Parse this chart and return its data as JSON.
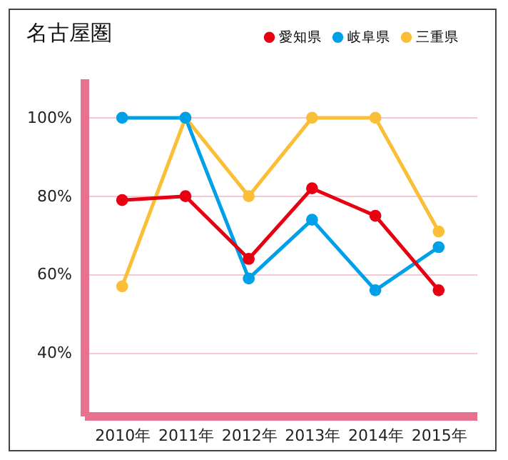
{
  "chart_data": {
    "type": "line",
    "title": "名古屋圏",
    "categories": [
      "2010年",
      "2011年",
      "2012年",
      "2013年",
      "2014年",
      "2015年"
    ],
    "series": [
      {
        "name": "愛知県",
        "color": "#e60012",
        "values": [
          79,
          80,
          64,
          82,
          75,
          56
        ]
      },
      {
        "name": "岐阜県",
        "color": "#00a0e9",
        "values": [
          100,
          100,
          59,
          74,
          56,
          67
        ]
      },
      {
        "name": "三重県",
        "color": "#fabe37",
        "values": [
          57,
          100,
          80,
          100,
          100,
          71
        ]
      }
    ],
    "ylim": [
      24,
      110
    ],
    "yticks": [
      {
        "value": 40,
        "label": "40%"
      },
      {
        "value": 60,
        "label": "60%"
      },
      {
        "value": 80,
        "label": "80%"
      },
      {
        "value": 100,
        "label": "100%"
      }
    ],
    "grid": "y",
    "legend": "top right",
    "marker": "circle",
    "line_style": "solid"
  }
}
